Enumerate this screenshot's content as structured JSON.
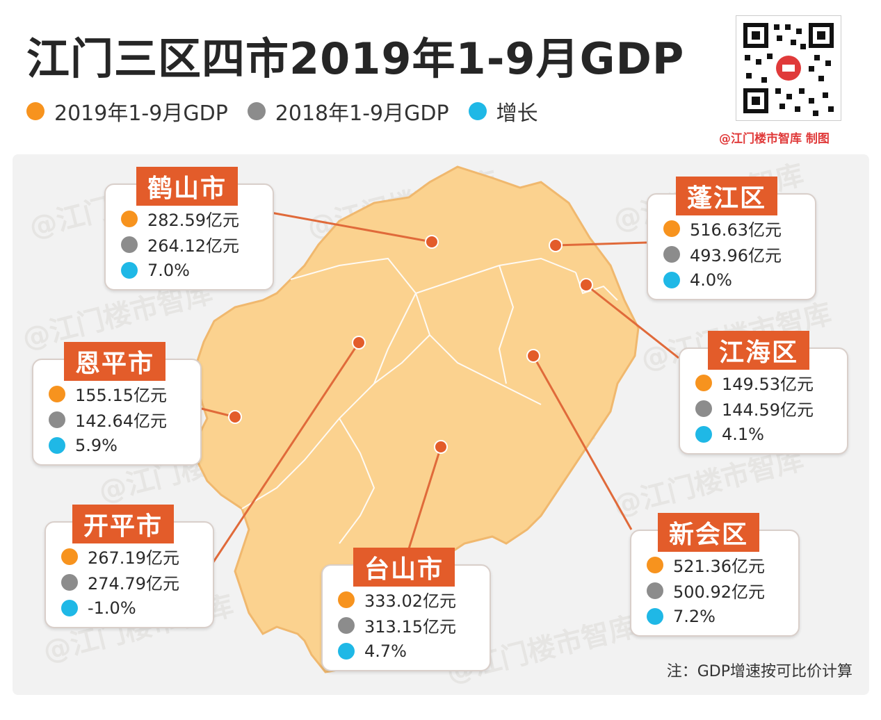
{
  "title": "江门三区四市2019年1-9月GDP",
  "legend": [
    {
      "label": "2019年1-9月GDP",
      "color": "#f7931e"
    },
    {
      "label": "2018年1-9月GDP",
      "color": "#8c8c8c"
    },
    {
      "label": "增长",
      "color": "#1fb8e6"
    }
  ],
  "credit": "@江门楼市智库 制图",
  "note": "注：GDP增速按可比价计算",
  "watermark": "@江门楼市智库",
  "chart_data": {
    "type": "table",
    "series": [
      {
        "name": "2019年1-9月GDP"
      },
      {
        "name": "2018年1-9月GDP"
      },
      {
        "name": "增长"
      }
    ],
    "regions": [
      {
        "name": "鹤山市",
        "gdp_2019": "282.59亿元",
        "gdp_2018": "264.12亿元",
        "growth": "7.0%"
      },
      {
        "name": "蓬江区",
        "gdp_2019": "516.63亿元",
        "gdp_2018": "493.96亿元",
        "growth": "4.0%"
      },
      {
        "name": "恩平市",
        "gdp_2019": "155.15亿元",
        "gdp_2018": "142.64亿元",
        "growth": "5.9%"
      },
      {
        "name": "江海区",
        "gdp_2019": "149.53亿元",
        "gdp_2018": "144.59亿元",
        "growth": "4.1%"
      },
      {
        "name": "开平市",
        "gdp_2019": "267.19亿元",
        "gdp_2018": "274.79亿元",
        "growth": "-1.0%"
      },
      {
        "name": "台山市",
        "gdp_2019": "333.02亿元",
        "gdp_2018": "313.15亿元",
        "growth": "4.7%"
      },
      {
        "name": "新会区",
        "gdp_2019": "521.36亿元",
        "gdp_2018": "500.92亿元",
        "growth": "7.2%"
      }
    ]
  }
}
